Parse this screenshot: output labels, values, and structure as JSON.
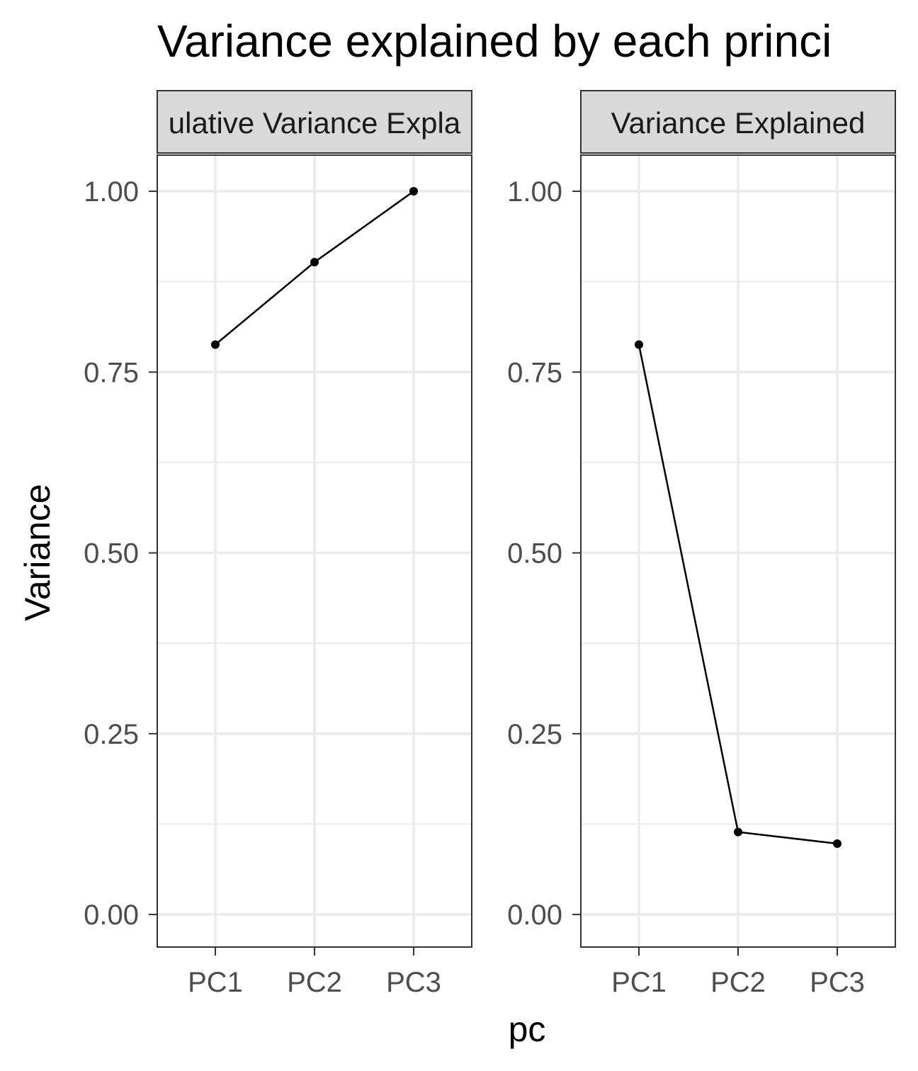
{
  "chart_data": {
    "type": "line",
    "title": "Variance explained by each princi",
    "xlabel": "pc",
    "ylabel": "Variance",
    "ylim": [
      -0.045,
      1.05
    ],
    "yticks": [
      "0.00",
      "0.25",
      "0.50",
      "0.75",
      "1.00"
    ],
    "ytick_values": [
      0,
      0.25,
      0.5,
      0.75,
      1.0
    ],
    "categories": [
      "PC1",
      "PC2",
      "PC3"
    ],
    "grid": true,
    "colors": {
      "line": "#000000",
      "grid": "#ebebeb",
      "strip": "#d9d9d9",
      "border": "#333333"
    },
    "panels": [
      {
        "strip_label": "ulative Variance Expla",
        "values": [
          0.788,
          0.902,
          1.0
        ]
      },
      {
        "strip_label": "Variance Explained",
        "values": [
          0.788,
          0.114,
          0.098
        ]
      }
    ]
  }
}
